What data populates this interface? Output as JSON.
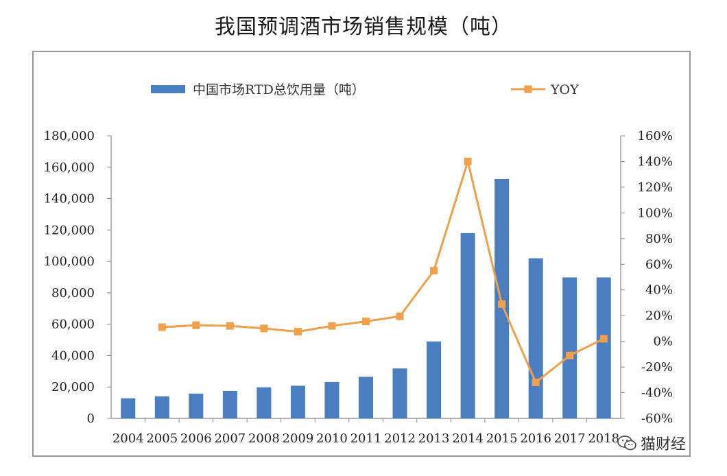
{
  "title": "我国预调酒市场销售规模（吨）",
  "watermark": {
    "text": "猫财经",
    "icon": "wechat-icon"
  },
  "chart_data": {
    "type": "bar",
    "categories": [
      "2004",
      "2005",
      "2006",
      "2007",
      "2008",
      "2009",
      "2010",
      "2011",
      "2012",
      "2013",
      "2014",
      "2015",
      "2016",
      "2017",
      "2018"
    ],
    "series": [
      {
        "name": "中国市场RTD总饮用量（吨）",
        "type": "bar",
        "axis": "left",
        "color": "#4a7ec1",
        "values": [
          12800,
          14000,
          15800,
          17500,
          19800,
          20800,
          23200,
          26500,
          31800,
          49000,
          118000,
          152500,
          102000,
          89800,
          89800
        ]
      },
      {
        "name": "YOY",
        "type": "line",
        "axis": "right",
        "color": "#f0a04b",
        "values": [
          null,
          11,
          12.5,
          12,
          10,
          7.5,
          12,
          15.5,
          19.5,
          55,
          140,
          29,
          -32,
          -11,
          2
        ]
      }
    ],
    "yleft": {
      "min": 0,
      "max": 180000,
      "ticks": [
        "0",
        "20,000",
        "40,000",
        "60,000",
        "80,000",
        "100,000",
        "120,000",
        "140,000",
        "160,000",
        "180,000"
      ]
    },
    "yright": {
      "min": -60,
      "max": 160,
      "ticks": [
        "-60%",
        "-40%",
        "-20%",
        "0%",
        "20%",
        "40%",
        "60%",
        "80%",
        "100%",
        "120%",
        "140%",
        "160%"
      ]
    },
    "legend_position": "top",
    "grid": false
  }
}
